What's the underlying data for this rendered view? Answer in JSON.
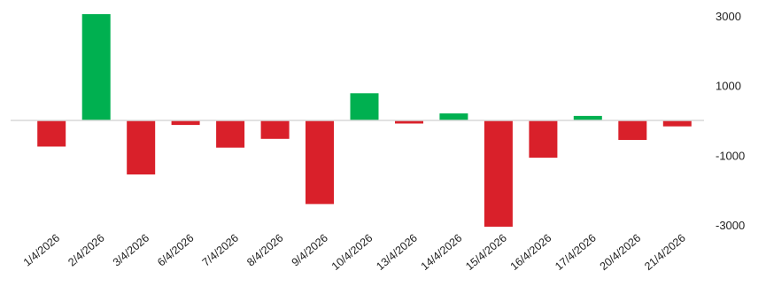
{
  "chart_data": {
    "type": "bar",
    "title": "",
    "xlabel": "",
    "ylabel": "",
    "ylim": [
      -3000,
      3000
    ],
    "yticks": [
      3000,
      1000,
      -1000,
      -3000
    ],
    "y_axis_side": "right",
    "grid": false,
    "categories": [
      "1/4/2026",
      "2/4/2026",
      "3/4/2026",
      "6/4/2026",
      "7/4/2026",
      "8/4/2026",
      "9/4/2026",
      "10/4/2026",
      "13/4/2026",
      "14/4/2026",
      "15/4/2026",
      "16/4/2026",
      "17/4/2026",
      "20/4/2026",
      "21/4/2026"
    ],
    "values": [
      -750,
      3050,
      -1550,
      -130,
      -780,
      -530,
      -2400,
      780,
      -90,
      200,
      -3050,
      -1070,
      130,
      -560,
      -170
    ],
    "colors": {
      "positive": "#00b050",
      "negative": "#d9202a",
      "axis": "#d9d9d9"
    }
  }
}
